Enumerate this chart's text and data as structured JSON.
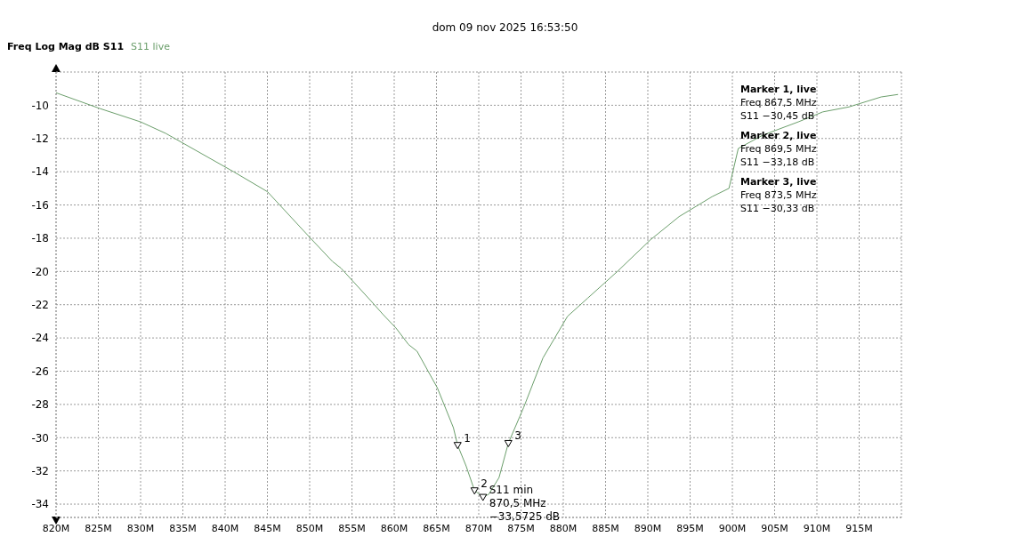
{
  "chart_data": {
    "type": "line",
    "subtitle": "dom 09 nov 2025 16:53:50",
    "ylabel": "Freq Log Mag dB S11",
    "xlim": [
      820,
      920
    ],
    "ylim": [
      -34.8,
      -8
    ],
    "xticks": [
      {
        "value": 820,
        "label": "820M"
      },
      {
        "value": 825,
        "label": "825M"
      },
      {
        "value": 830,
        "label": "830M"
      },
      {
        "value": 835,
        "label": "835M"
      },
      {
        "value": 840,
        "label": "840M"
      },
      {
        "value": 845,
        "label": "845M"
      },
      {
        "value": 850,
        "label": "850M"
      },
      {
        "value": 855,
        "label": "855M"
      },
      {
        "value": 860,
        "label": "860M"
      },
      {
        "value": 865,
        "label": "865M"
      },
      {
        "value": 870,
        "label": "870M"
      },
      {
        "value": 875,
        "label": "875M"
      },
      {
        "value": 880,
        "label": "880M"
      },
      {
        "value": 885,
        "label": "885M"
      },
      {
        "value": 890,
        "label": "890M"
      },
      {
        "value": 895,
        "label": "895M"
      },
      {
        "value": 900,
        "label": "900M"
      },
      {
        "value": 905,
        "label": "905M"
      },
      {
        "value": 910,
        "label": "910M"
      },
      {
        "value": 915,
        "label": "915M"
      }
    ],
    "yticks": [
      -10,
      -12,
      -14,
      -16,
      -18,
      -20,
      -22,
      -24,
      -26,
      -28,
      -30,
      -32,
      -34
    ],
    "grid": true,
    "legend": "top left",
    "marker": "none",
    "line_style": "solid",
    "series": [
      {
        "name": "S11 live",
        "color": "#6b9e6b",
        "x": [
          820,
          825.2,
          830,
          833,
          841,
          845,
          850.1,
          852.7,
          853.7,
          857.3,
          858.7,
          860.2,
          861.7,
          862.7,
          865.1,
          867,
          867.5,
          868.5,
          869.5,
          870.5,
          871.2,
          872.4,
          873.5,
          875.3,
          877.6,
          880.5,
          882.9,
          886.4,
          890.3,
          893.7,
          897.6,
          899.6,
          900.7,
          903.6,
          907.8,
          910.7,
          913.8,
          917.6,
          919.6
        ],
        "values": [
          -9.25,
          -10.2,
          -11,
          -11.7,
          -14,
          -15.2,
          -18,
          -19.4,
          -19.8,
          -21.8,
          -22.6,
          -23.4,
          -24.4,
          -24.8,
          -27,
          -29.4,
          -30.45,
          -31.7,
          -33.18,
          -33.5725,
          -33.4,
          -32.4,
          -30.33,
          -28.2,
          -25.2,
          -22.7,
          -21.6,
          -20,
          -18.1,
          -16.7,
          -15.5,
          -15,
          -12.6,
          -11.8,
          -11,
          -10.4,
          -10.1,
          -9.5,
          -9.35
        ]
      }
    ],
    "annotations": [
      "Marker 1, live\nFreq 867,5 MHz\nS11 −30,45 dB",
      "Marker 2, live\nFreq 869,5 MHz\nS11 −33,18 dB",
      "Marker 3, live\nFreq 873,5 MHz\nS11 −30,33 dB",
      {
        "text": "1",
        "x": 867.5,
        "y": -30.45
      },
      {
        "text": "2",
        "x": 869.5,
        "y": -33.18
      },
      {
        "text": "3",
        "x": 873.5,
        "y": -30.33
      },
      {
        "text": "S11 min\n870,5 MHz\n−33,5725 dB",
        "x": 870.5,
        "y": -33.5725
      }
    ]
  }
}
